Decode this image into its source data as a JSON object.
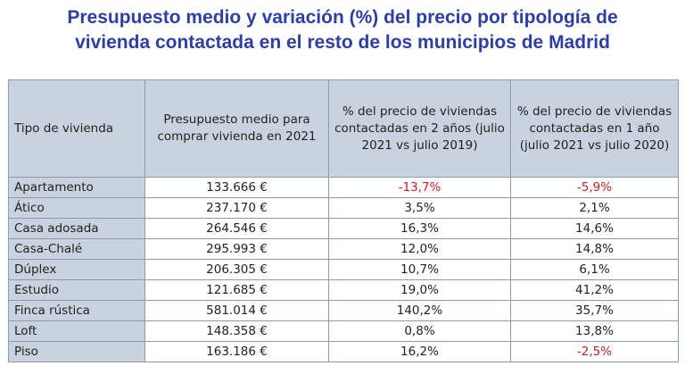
{
  "title": {
    "line1": "Presupuesto medio y variación (%) del precio por tipología de",
    "line2": "vivienda contactada en el resto de los municipios de Madrid"
  },
  "colors": {
    "title": "#2e3fa3",
    "header_bg": "#c9d2de",
    "negative": "#c0222c",
    "border": "#8c9cae"
  },
  "table": {
    "headers": [
      "Tipo de vivienda",
      "Presupuesto medio para comprar vivienda en 2021",
      "% del precio de viviendas contactadas en 2 años (julio 2021 vs julio 2019)",
      "% del precio de viviendas contactadas en 1 año (julio 2021 vs julio 2020)"
    ],
    "rows": [
      [
        "Apartamento",
        "133.666 €",
        "-13,7%",
        "-5,9%"
      ],
      [
        "Ático",
        "237.170 €",
        "3,5%",
        "2,1%"
      ],
      [
        "Casa adosada",
        "264.546 €",
        "16,3%",
        "14,6%"
      ],
      [
        "Casa-Chalé",
        "295.993 €",
        "12,0%",
        "14,8%"
      ],
      [
        "Dúplex",
        "206.305 €",
        "10,7%",
        "6,1%"
      ],
      [
        "Estudio",
        "121.685 €",
        "19,0%",
        "41,2%"
      ],
      [
        "Finca rústica",
        "581.014 €",
        "140,2%",
        "35,7%"
      ],
      [
        "Loft",
        "148.358 €",
        "0,8%",
        "13,8%"
      ],
      [
        "Piso",
        "163.186 €",
        "16,2%",
        "-2,5%"
      ]
    ]
  }
}
